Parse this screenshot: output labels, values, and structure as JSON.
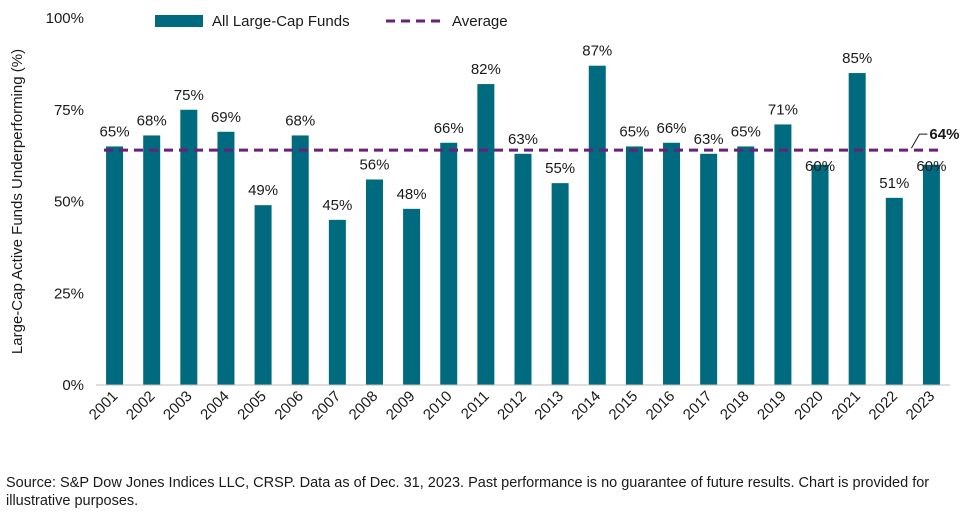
{
  "chart_data": {
    "type": "bar",
    "title": "",
    "ylabel": "Large-Cap Active Funds Underperforming (%)",
    "xlabel": "",
    "ylim": [
      0,
      100
    ],
    "yticks": [
      0,
      25,
      50,
      75,
      100
    ],
    "ytick_labels": [
      "0%",
      "25%",
      "50%",
      "75%",
      "100%"
    ],
    "categories": [
      "2001",
      "2002",
      "2003",
      "2004",
      "2005",
      "2006",
      "2007",
      "2008",
      "2009",
      "2010",
      "2011",
      "2012",
      "2013",
      "2014",
      "2015",
      "2016",
      "2017",
      "2018",
      "2019",
      "2020",
      "2021",
      "2022",
      "2023"
    ],
    "series": [
      {
        "name": "All Large-Cap Funds",
        "color": "#006a7f",
        "values": [
          65,
          68,
          75,
          69,
          49,
          68,
          45,
          56,
          48,
          66,
          82,
          63,
          55,
          87,
          65,
          66,
          63,
          65,
          71,
          60,
          85,
          51,
          60
        ],
        "labels": [
          "65%",
          "68%",
          "75%",
          "69%",
          "49%",
          "68%",
          "45%",
          "56%",
          "48%",
          "66%",
          "82%",
          "63%",
          "55%",
          "87%",
          "65%",
          "66%",
          "63%",
          "65%",
          "71%",
          "60%",
          "85%",
          "51%",
          "60%"
        ]
      }
    ],
    "average": {
      "name": "Average",
      "value": 64,
      "label": "64%",
      "color": "#6a1f7a"
    },
    "legend": [
      "All Large-Cap Funds",
      "Average"
    ],
    "legend_position": "top"
  },
  "footer": {
    "source_note": "Source: S&P Dow Jones Indices LLC, CRSP. Data as of Dec. 31, 2023. Past performance is no guarantee of future results. Chart is provided for illustrative purposes."
  }
}
